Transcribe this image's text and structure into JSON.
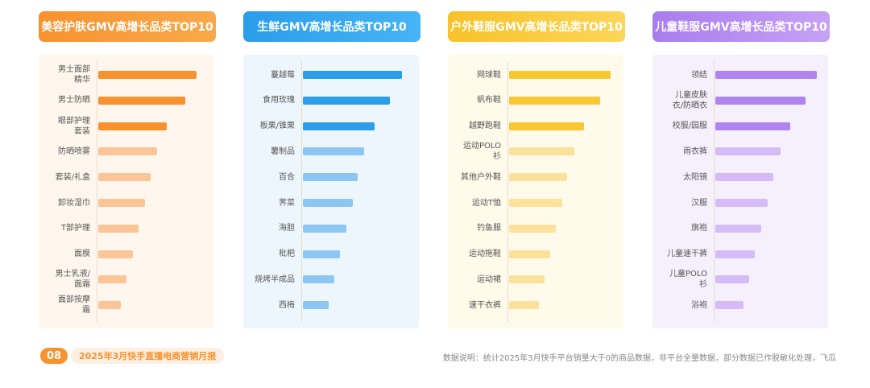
{
  "chart_data": [
    {
      "type": "bar",
      "orientation": "horizontal",
      "title": "美容护肤GMV高增长品类TOP10",
      "categories": [
        "男士面部精华",
        "男士防晒",
        "眼部护理套装",
        "防晒喷雾",
        "套装/礼盒",
        "卸妆湿巾",
        "T部护理",
        "面膜",
        "男士乳液/面霜",
        "面部按摩霜"
      ],
      "values": [
        122,
        108,
        85,
        73,
        65,
        58,
        50,
        43,
        35,
        28
      ],
      "colors": [
        "#f7922f",
        "#f7922f",
        "#f7922f",
        "#fbc597",
        "#fbc597",
        "#fbc597",
        "#fbc597",
        "#fbc597",
        "#fbc597",
        "#fbc597"
      ],
      "xlim": [
        0,
        130
      ]
    },
    {
      "type": "bar",
      "orientation": "horizontal",
      "title": "生鲜GMV高增长品类TOP10",
      "categories": [
        "蔓越莓",
        "食用玫瑰",
        "板栗/锥栗",
        "薯制品",
        "百合",
        "荠菜",
        "海胆",
        "枇杷",
        "烧烤半成品",
        "西梅"
      ],
      "values": [
        123,
        108,
        89,
        76,
        68,
        62,
        54,
        46,
        39,
        32
      ],
      "colors": [
        "#2b9de9",
        "#2b9de9",
        "#2b9de9",
        "#8cc7f3",
        "#8cc7f3",
        "#8cc7f3",
        "#8cc7f3",
        "#8cc7f3",
        "#8cc7f3",
        "#8cc7f3"
      ],
      "xlim": [
        0,
        130
      ]
    },
    {
      "type": "bar",
      "orientation": "horizontal",
      "title": "户外鞋服GMV高增长品类TOP10",
      "categories": [
        "网球鞋",
        "帆布鞋",
        "越野跑鞋",
        "运动POLO衫",
        "其他户外鞋",
        "运动T恤",
        "钓鱼服",
        "运动拖鞋",
        "运动裙",
        "速干衣裤"
      ],
      "values": [
        126,
        113,
        93,
        81,
        72,
        66,
        58,
        51,
        44,
        37
      ],
      "colors": [
        "#f8c732",
        "#f8c732",
        "#f8c732",
        "#fbe19a",
        "#fbe19a",
        "#fbe19a",
        "#fbe19a",
        "#fbe19a",
        "#fbe19a",
        "#fbe19a"
      ],
      "xlim": [
        0,
        130
      ]
    },
    {
      "type": "bar",
      "orientation": "horizontal",
      "title": "儿童鞋服GMV高增长品类TOP10",
      "categories": [
        "领结",
        "儿童皮肤衣/防晒衣",
        "校服/园服",
        "雨衣裤",
        "太阳镜",
        "汉服",
        "旗袍",
        "儿童速干裤",
        "儿童POLO衫",
        "浴袍"
      ],
      "values": [
        126,
        112,
        93,
        81,
        72,
        65,
        57,
        49,
        42,
        35
      ],
      "colors": [
        "#b084ef",
        "#b084ef",
        "#b084ef",
        "#d5bcf6",
        "#d5bcf6",
        "#d5bcf6",
        "#d5bcf6",
        "#d5bcf6",
        "#d5bcf6",
        "#d5bcf6"
      ],
      "xlim": [
        0,
        130
      ]
    }
  ],
  "footer": {
    "page_number": "08",
    "report_title": "2025年3月快手直播电商营销月报",
    "note": "数据说明：统计2025年3月快手平台销量大于0的商品数据，非平台全量数据，部分数据已作脱敏化处理，飞瓜"
  }
}
